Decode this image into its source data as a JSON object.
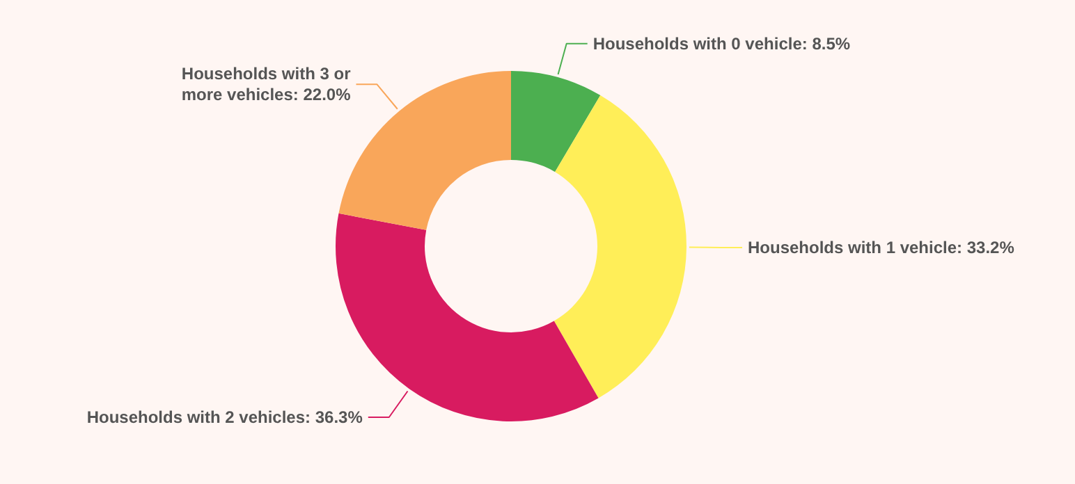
{
  "chart_data": {
    "type": "donut",
    "categories": [
      "Households with 0 vehicle",
      "Households with 1 vehicle",
      "Households with 2 vehicles",
      "Households with 3 or more vehicles"
    ],
    "values": [
      8.5,
      33.2,
      36.3,
      22.0
    ],
    "colors": [
      "#4caf50",
      "#ffee58",
      "#d81b60",
      "#f9a65a"
    ],
    "value_labels": [
      "8.5%",
      "33.2%",
      "36.3%",
      "22.0%"
    ]
  }
}
